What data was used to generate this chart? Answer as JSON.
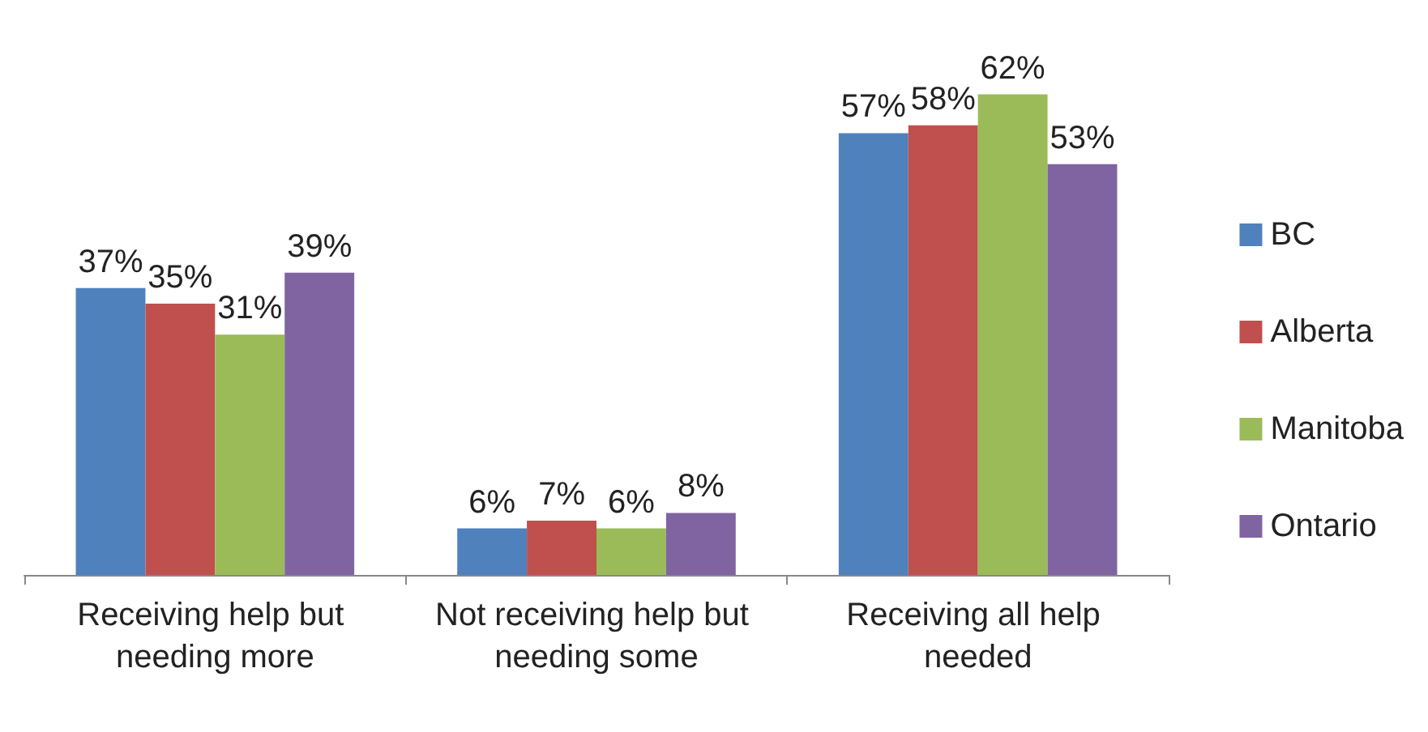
{
  "chart_data": {
    "type": "bar",
    "categories": [
      "Receiving help but needing more",
      "Not receiving help but needing some",
      "Receiving all help needed"
    ],
    "series": [
      {
        "name": "BC",
        "color": "#4f81bd",
        "values": [
          37,
          6,
          57
        ],
        "value_labels": [
          "37%",
          "6%",
          "57%"
        ]
      },
      {
        "name": "Alberta",
        "color": "#c0504d",
        "values": [
          35,
          7,
          58
        ],
        "value_labels": [
          "35%",
          "7%",
          "58%"
        ]
      },
      {
        "name": "Manitoba",
        "color": "#9bbb59",
        "values": [
          31,
          6,
          62
        ],
        "value_labels": [
          "31%",
          "6%",
          "62%"
        ]
      },
      {
        "name": "Ontario",
        "color": "#8064a2",
        "values": [
          39,
          8,
          53
        ],
        "value_labels": [
          "39%",
          "8%",
          "53%"
        ]
      }
    ],
    "legend": "right",
    "tick_labels": "x"
  }
}
